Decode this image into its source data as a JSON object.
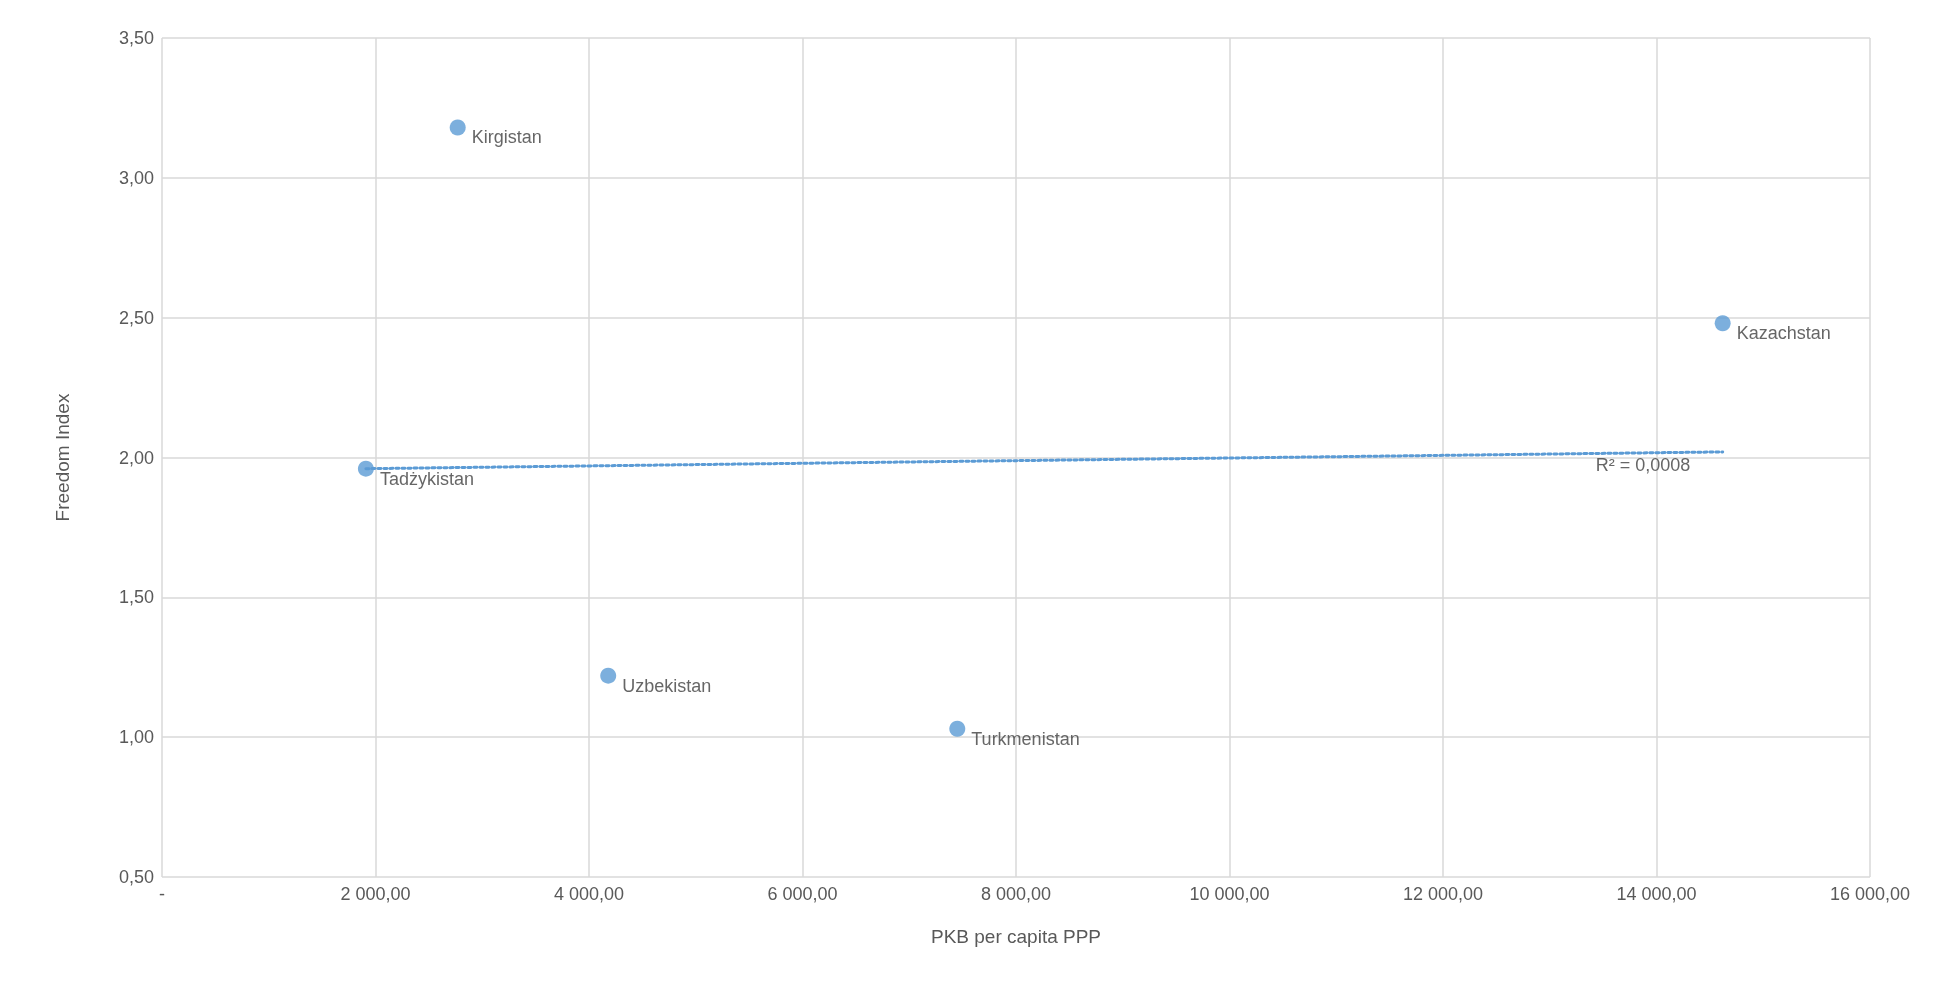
{
  "chart_data": {
    "type": "scatter",
    "xlabel": "PKB per capita PPP",
    "ylabel": "Freedom Index",
    "series": [
      {
        "color": "#5b9bd5",
        "x": [
          2770,
          14620,
          1910,
          4180,
          7450
        ],
        "values": [
          3.18,
          2.48,
          1.96,
          1.22,
          1.03
        ]
      },
      {
        "type": "line",
        "color": "#5b9bd5",
        "line_style": "dotted",
        "marker": "none",
        "x": [
          1910,
          14620
        ],
        "values": [
          1.96,
          2.02
        ]
      }
    ],
    "annotations": [
      {
        "text": "Kirgistan",
        "x": 2770,
        "y": 3.18
      },
      {
        "text": "Kazachstan",
        "x": 14620,
        "y": 2.48
      },
      {
        "text": "Tadżykistan",
        "x": 1910,
        "y": 1.96
      },
      {
        "text": "Uzbekistan",
        "x": 4180,
        "y": 1.22
      },
      {
        "text": "Turkmenistan",
        "x": 7450,
        "y": 1.03
      },
      {
        "text": "R² = 0,0008",
        "x": 13300,
        "y": 2.01
      }
    ],
    "xlim": [
      0,
      16000
    ],
    "xticks": [
      {
        "value": 0,
        "label": "-"
      },
      {
        "value": 2000,
        "label": "2 000,00"
      },
      {
        "value": 4000,
        "label": "4 000,00"
      },
      {
        "value": 6000,
        "label": "6 000,00"
      },
      {
        "value": 8000,
        "label": "8 000,00"
      },
      {
        "value": 10000,
        "label": "10 000,00"
      },
      {
        "value": 12000,
        "label": "12 000,00"
      },
      {
        "value": 14000,
        "label": "14 000,00"
      },
      {
        "value": 16000,
        "label": "16 000,00"
      }
    ],
    "ylim": [
      0.5,
      3.5
    ],
    "yticks": [
      {
        "value": 0.5,
        "label": "0,50"
      },
      {
        "value": 1,
        "label": "1,00"
      },
      {
        "value": 1.5,
        "label": "1,50"
      },
      {
        "value": 2,
        "label": "2,00"
      },
      {
        "value": 2.5,
        "label": "2,50"
      },
      {
        "value": 3,
        "label": "3,00"
      },
      {
        "value": 3.5,
        "label": "3,50"
      }
    ],
    "grid": true,
    "marker": "circle"
  }
}
